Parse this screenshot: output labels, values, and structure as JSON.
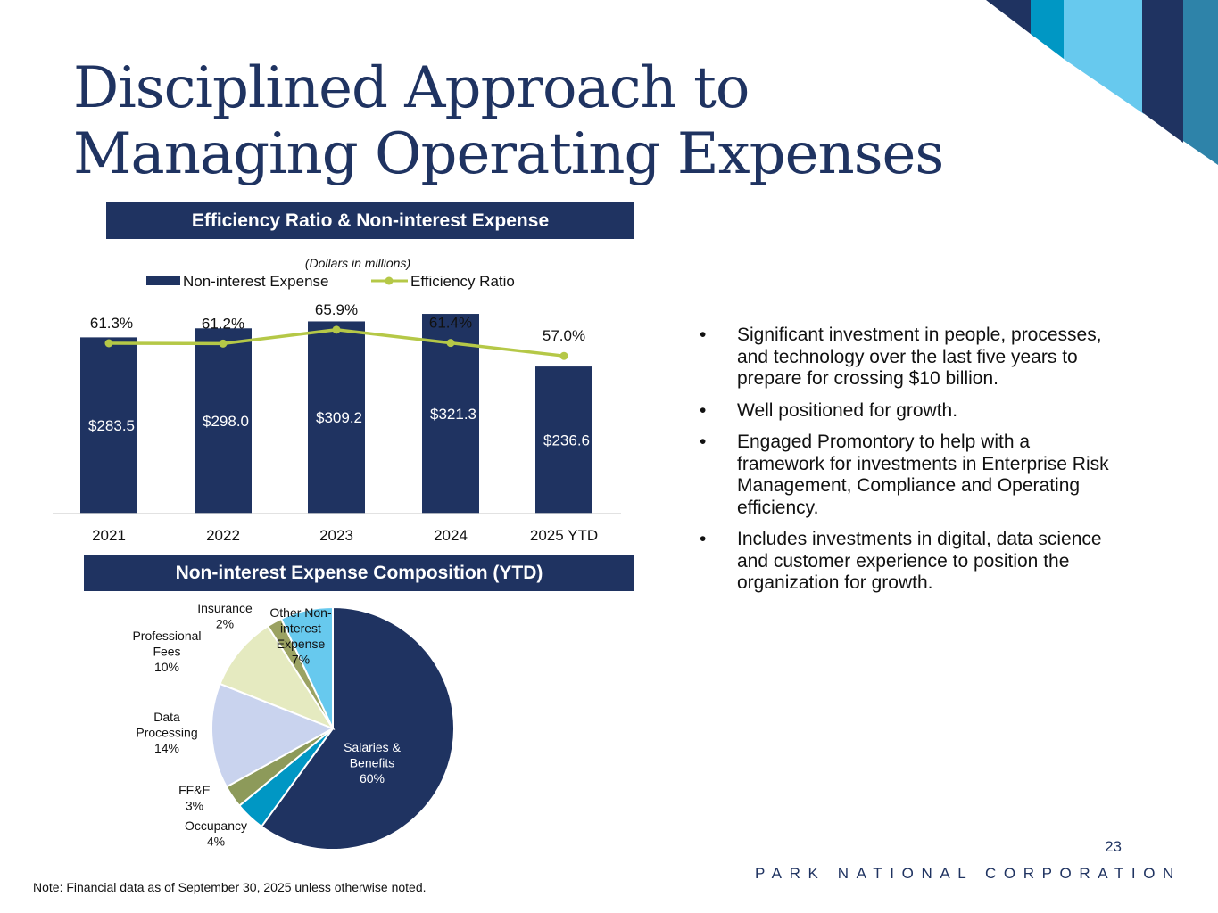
{
  "slide": {
    "title_line1": "Disciplined Approach to",
    "title_line2": "Managing Operating Expenses",
    "page_number": "23",
    "brand": "PARK NATIONAL CORPORATION",
    "note": "Note: Financial data as of September 30, 2025 unless otherwise noted.",
    "colors": {
      "navy": "#1f3361",
      "teal": "#0097c4",
      "light_blue": "#67c9ee",
      "steel": "#2e83a9",
      "line_green": "#b5c847"
    }
  },
  "bar_section": {
    "banner": "Efficiency Ratio & Non-interest Expense"
  },
  "pie_section": {
    "banner": "Non-interest Expense Composition (YTD)"
  },
  "bullets": [
    {
      "marker": "•",
      "text": "Significant investment in people, processes, and technology over the last five years to prepare for crossing $10 billion."
    },
    {
      "marker": "•",
      "text": "Well positioned for growth."
    },
    {
      "marker": "•",
      "text": "Engaged Promontory to help with a framework for investments in Enterprise Risk Management, Compliance and Operating efficiency."
    },
    {
      "marker": "•",
      "text": "Includes investments in digital, data science and customer experience to position the organization for growth."
    }
  ],
  "chart_data": [
    {
      "type": "bar",
      "subtitle": "(Dollars in millions)",
      "categories": [
        "2021",
        "2022",
        "2023",
        "2024",
        "2025 YTD"
      ],
      "series": [
        {
          "name": "Non-interest Expense",
          "kind": "bar",
          "values": [
            283.5,
            298.0,
            309.2,
            321.3,
            236.6
          ],
          "labels": [
            "$283.5",
            "$298.0",
            "$309.2",
            "$321.3",
            "$236.6"
          ],
          "color": "#1f3361"
        },
        {
          "name": "Efficiency Ratio",
          "kind": "line",
          "values": [
            61.3,
            61.2,
            65.9,
            61.4,
            57.0
          ],
          "labels": [
            "61.3%",
            "61.2%",
            "65.9%",
            "61.4%",
            "57.0%"
          ],
          "color": "#b5c847"
        }
      ],
      "ylim_bar": [
        0,
        340
      ],
      "ylim_line": [
        0,
        80
      ],
      "legend": "top",
      "grid": false
    },
    {
      "type": "pie",
      "slices": [
        {
          "label": "Salaries & Benefits",
          "value": 60,
          "text": "Salaries & Benefits 60%",
          "color": "#1f3361"
        },
        {
          "label": "Occupancy",
          "value": 4,
          "text": "Occupancy 4%",
          "color": "#0097c4"
        },
        {
          "label": "FF&E",
          "value": 3,
          "text": "FF&E 3%",
          "color": "#8d9a5a"
        },
        {
          "label": "Data Processing",
          "value": 14,
          "text": "Data Processing 14%",
          "color": "#c9d3ee"
        },
        {
          "label": "Professional Fees",
          "value": 10,
          "text": "Professional Fees 10%",
          "color": "#e5eac0"
        },
        {
          "label": "Insurance",
          "value": 2,
          "text": "Insurance 2%",
          "color": "#9ba262"
        },
        {
          "label": "Other Non-interest Expense",
          "value": 7,
          "text": "Other Non-interest Expense 7%",
          "color": "#67c9ee"
        }
      ]
    }
  ]
}
